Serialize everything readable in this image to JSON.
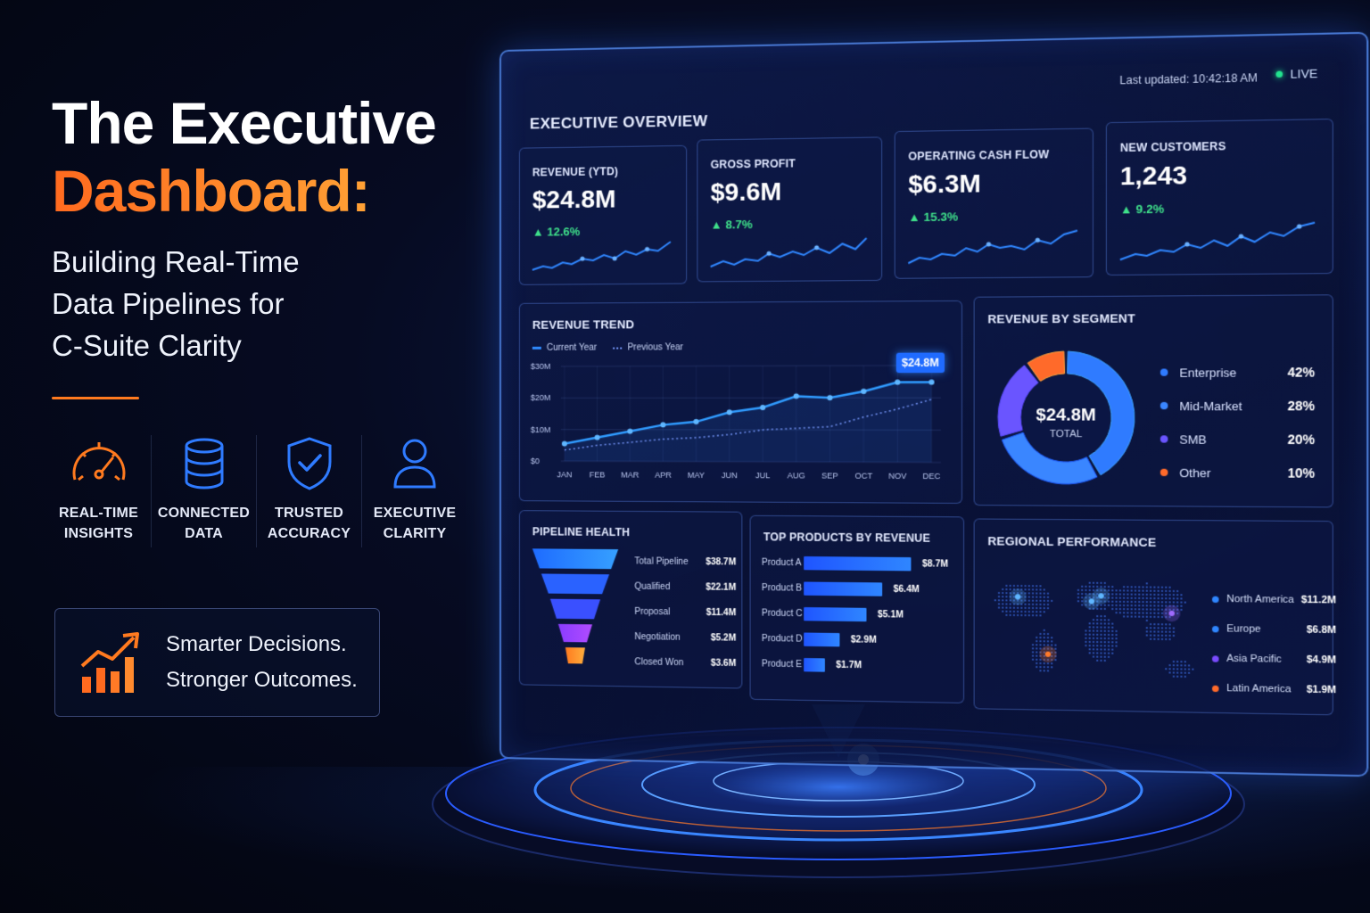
{
  "hero": {
    "title_line1": "The Executive",
    "title_line2": "Dashboard:",
    "subtitle_line1": "Building Real-Time",
    "subtitle_line2": "Data Pipelines for",
    "subtitle_line3": "C-Suite Clarity"
  },
  "features": [
    {
      "line1": "REAL-TIME",
      "line2": "INSIGHTS",
      "icon": "speedometer-icon"
    },
    {
      "line1": "CONNECTED",
      "line2": "DATA",
      "icon": "database-icon"
    },
    {
      "line1": "TRUSTED",
      "line2": "ACCURACY",
      "icon": "shield-check-icon"
    },
    {
      "line1": "EXECUTIVE",
      "line2": "CLARITY",
      "icon": "user-icon"
    }
  ],
  "cta": {
    "line1": "Smarter Decisions.",
    "line2": "Stronger Outcomes.",
    "icon": "growth-chart-icon"
  },
  "dashboard": {
    "title": "EXECUTIVE OVERVIEW",
    "last_updated": "Last updated: 10:42:18 AM",
    "live": "LIVE",
    "kpis": [
      {
        "label": "REVENUE (YTD)",
        "value": "$24.8M",
        "delta": "▲ 12.6%"
      },
      {
        "label": "GROSS PROFIT",
        "value": "$9.6M",
        "delta": "▲ 8.7%"
      },
      {
        "label": "OPERATING CASH FLOW",
        "value": "$6.3M",
        "delta": "▲ 15.3%"
      },
      {
        "label": "NEW CUSTOMERS",
        "value": "1,243",
        "delta": "▲ 9.2%"
      }
    ],
    "revenue_trend": {
      "title": "REVENUE TREND",
      "legend_current": "Current Year",
      "legend_previous": "Previous Year",
      "callout": "$24.8M",
      "y_ticks": [
        "$30M",
        "$20M",
        "$10M",
        "$0"
      ],
      "months": [
        "JAN",
        "FEB",
        "MAR",
        "APR",
        "MAY",
        "JUN",
        "JUL",
        "AUG",
        "SEP",
        "OCT",
        "NOV",
        "DEC"
      ]
    },
    "segment": {
      "title": "REVENUE BY SEGMENT",
      "center_value": "$24.8M",
      "center_label": "TOTAL",
      "items": [
        {
          "name": "Enterprise",
          "pct": "42%",
          "color": "#2f7bff"
        },
        {
          "name": "Mid-Market",
          "pct": "28%",
          "color": "#3a86ff"
        },
        {
          "name": "SMB",
          "pct": "20%",
          "color": "#6a55ff"
        },
        {
          "name": "Other",
          "pct": "10%",
          "color": "#ff6a2a"
        }
      ]
    },
    "pipeline": {
      "title": "PIPELINE HEALTH",
      "rows": [
        {
          "name": "Total Pipeline",
          "value": "$38.7M"
        },
        {
          "name": "Qualified",
          "value": "$22.1M"
        },
        {
          "name": "Proposal",
          "value": "$11.4M"
        },
        {
          "name": "Negotiation",
          "value": "$5.2M"
        },
        {
          "name": "Closed Won",
          "value": "$3.6M"
        }
      ]
    },
    "products": {
      "title": "TOP PRODUCTS BY REVENUE",
      "rows": [
        {
          "name": "Product A",
          "value": "$8.7M"
        },
        {
          "name": "Product B",
          "value": "$6.4M"
        },
        {
          "name": "Product C",
          "value": "$5.1M"
        },
        {
          "name": "Product D",
          "value": "$2.9M"
        },
        {
          "name": "Product E",
          "value": "$1.7M"
        }
      ]
    },
    "regional": {
      "title": "REGIONAL PERFORMANCE",
      "rows": [
        {
          "name": "North America",
          "value": "$11.2M",
          "color": "#2f86ff"
        },
        {
          "name": "Europe",
          "value": "$6.8M",
          "color": "#2f86ff"
        },
        {
          "name": "Asia Pacific",
          "value": "$4.9M",
          "color": "#7a4bff"
        },
        {
          "name": "Latin America",
          "value": "$1.9M",
          "color": "#ff6a2a"
        }
      ]
    }
  },
  "chart_data": [
    {
      "type": "line",
      "title": "REVENUE TREND",
      "categories": [
        "JAN",
        "FEB",
        "MAR",
        "APR",
        "MAY",
        "JUN",
        "JUL",
        "AUG",
        "SEP",
        "OCT",
        "NOV",
        "DEC"
      ],
      "series": [
        {
          "name": "Current Year",
          "values": [
            5.5,
            7.5,
            9.5,
            11.5,
            12.5,
            15.5,
            17,
            20.5,
            20,
            22,
            24.8,
            24.8
          ]
        },
        {
          "name": "Previous Year",
          "values": [
            3.5,
            5,
            6,
            7,
            7.5,
            8.5,
            10,
            10.5,
            11,
            14,
            16.5,
            19.5
          ]
        }
      ],
      "ylim": [
        0,
        30
      ]
    },
    {
      "type": "pie",
      "title": "REVENUE BY SEGMENT",
      "categories": [
        "Enterprise",
        "Mid-Market",
        "SMB",
        "Other"
      ],
      "values": [
        42,
        28,
        20,
        10
      ]
    },
    {
      "type": "bar",
      "title": "TOP PRODUCTS BY REVENUE",
      "categories": [
        "Product A",
        "Product B",
        "Product C",
        "Product D",
        "Product E"
      ],
      "values": [
        8.7,
        6.4,
        5.1,
        2.9,
        1.7
      ]
    },
    {
      "type": "bar",
      "title": "PIPELINE HEALTH",
      "categories": [
        "Total Pipeline",
        "Qualified",
        "Proposal",
        "Negotiation",
        "Closed Won"
      ],
      "values": [
        38.7,
        22.1,
        11.4,
        5.2,
        3.6
      ]
    }
  ]
}
